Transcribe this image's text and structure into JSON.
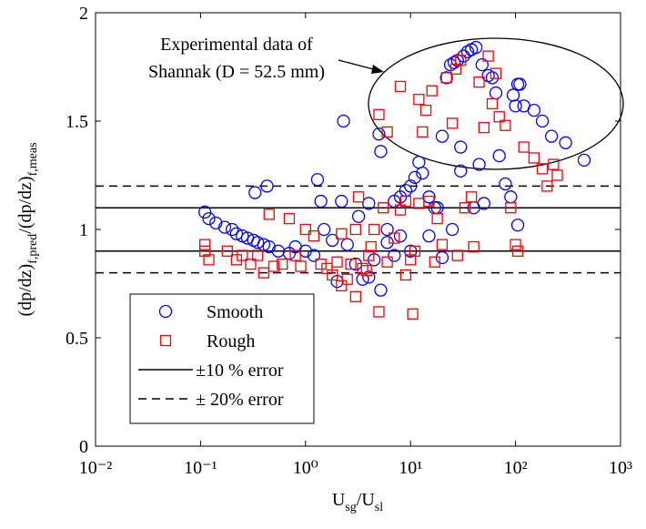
{
  "chart_data": {
    "type": "scatter",
    "xscale": "log",
    "xlabel_parts": [
      "U",
      "sg",
      "/U",
      "sl"
    ],
    "ylabel_parts": [
      "(dp/dz)",
      "f,pred",
      "/(dp/dz)",
      "f,meas"
    ],
    "xlim": [
      0.01,
      1000
    ],
    "xticks": [
      {
        "value": 0.01,
        "label": "10⁻²"
      },
      {
        "value": 0.1,
        "label": "10⁻¹"
      },
      {
        "value": 1,
        "label": "10⁰"
      },
      {
        "value": 10,
        "label": "10¹"
      },
      {
        "value": 100,
        "label": "10²"
      },
      {
        "value": 1000,
        "label": "10³"
      }
    ],
    "ylim": [
      0,
      2
    ],
    "yticks": [
      0,
      0.5,
      1,
      1.5,
      2
    ],
    "annotation": [
      "Experimental data of",
      "Shannak (D = 52.5 mm)"
    ],
    "series": [
      {
        "name": "Smooth",
        "color": "#0000ff",
        "marker": "circle",
        "x": [
          0.11,
          0.12,
          0.14,
          0.17,
          0.2,
          0.22,
          0.25,
          0.28,
          0.32,
          0.35,
          0.4,
          0.45,
          0.33,
          0.43,
          0.55,
          0.7,
          0.8,
          1.0,
          1.2,
          1.3,
          1.4,
          1.5,
          1.8,
          2.3,
          2.2,
          2.5,
          3,
          3.2,
          3.5,
          4,
          4.5,
          5,
          5.2,
          5.2,
          6,
          7,
          8,
          9,
          10,
          11,
          12,
          13,
          15,
          17,
          20,
          22,
          24,
          26,
          28,
          30,
          32,
          35,
          38,
          42,
          45,
          48,
          55,
          60,
          70,
          80,
          90,
          95,
          100,
          105,
          110,
          120,
          150,
          180,
          220,
          300,
          450,
          30,
          40,
          50,
          8,
          10,
          7,
          2,
          4,
          6,
          20,
          25,
          105,
          65,
          18,
          15
        ],
        "values": [
          1.08,
          1.05,
          1.03,
          1.01,
          1.0,
          0.98,
          0.97,
          0.96,
          0.95,
          0.94,
          0.93,
          0.92,
          1.17,
          1.2,
          0.9,
          0.89,
          0.92,
          0.9,
          0.88,
          1.23,
          1.13,
          1.0,
          0.95,
          1.5,
          1.13,
          0.93,
          0.84,
          1.06,
          0.77,
          1.12,
          0.86,
          1.44,
          1.36,
          0.72,
          1.0,
          1.13,
          1.15,
          1.18,
          1.2,
          1.24,
          1.31,
          1.26,
          1.15,
          1.1,
          1.43,
          1.7,
          1.76,
          1.77,
          1.78,
          1.38,
          1.8,
          1.82,
          1.83,
          1.84,
          1.3,
          1.76,
          1.71,
          1.7,
          1.34,
          1.21,
          1.15,
          1.62,
          1.57,
          1.67,
          1.67,
          1.57,
          1.55,
          1.5,
          1.43,
          1.4,
          1.32,
          1.27,
          1.1,
          1.12,
          0.97,
          0.9,
          0.88,
          0.76,
          0.78,
          0.94,
          0.87,
          1.0,
          1.02,
          1.63,
          1.1,
          0.97
        ]
      },
      {
        "name": "Rough",
        "color": "#ff0000",
        "marker": "square",
        "x": [
          0.11,
          0.11,
          0.12,
          0.18,
          0.22,
          0.25,
          0.3,
          0.35,
          0.4,
          0.45,
          0.5,
          0.6,
          0.7,
          0.8,
          0.9,
          1.0,
          1.2,
          1.4,
          1.6,
          1.8,
          2,
          2.2,
          2.5,
          2.7,
          3,
          3,
          3.2,
          3.5,
          3.8,
          4.2,
          4.5,
          5,
          5,
          5.5,
          6,
          7,
          8,
          9,
          10,
          10.5,
          11,
          12,
          12,
          13,
          14,
          15,
          16,
          17,
          18,
          20,
          22,
          25,
          27,
          28,
          30,
          33,
          38,
          40,
          45,
          50,
          55,
          60,
          65,
          70,
          80,
          90,
          100,
          105,
          120,
          150,
          180,
          200,
          230,
          250,
          8,
          6,
          9,
          4,
          2.2
        ],
        "values": [
          0.93,
          0.9,
          0.86,
          0.9,
          0.86,
          0.88,
          0.84,
          0.88,
          0.8,
          1.07,
          0.83,
          0.84,
          1.05,
          0.88,
          0.83,
          1.0,
          0.97,
          0.84,
          0.82,
          0.79,
          0.85,
          0.98,
          0.77,
          0.84,
          1.0,
          0.69,
          1.15,
          0.82,
          0.81,
          0.92,
          1.0,
          0.62,
          1.53,
          1.1,
          0.85,
          0.96,
          1.09,
          0.79,
          0.86,
          0.61,
          0.9,
          1.12,
          1.6,
          1.45,
          1.55,
          1.13,
          1.64,
          0.85,
          1.05,
          0.93,
          1.7,
          1.49,
          1.74,
          0.88,
          1.78,
          1.1,
          1.15,
          0.92,
          1.68,
          1.47,
          1.8,
          1.58,
          1.72,
          1.52,
          1.48,
          1.1,
          0.93,
          0.9,
          1.38,
          1.33,
          1.28,
          1.2,
          1.3,
          1.25,
          1.66,
          1.45,
          1.13,
          0.88,
          0.74
        ]
      }
    ],
    "reference_lines": [
      {
        "name": "±10 % error",
        "values": [
          0.9,
          1.1
        ],
        "dash": false
      },
      {
        "name": "± 20% error",
        "values": [
          0.8,
          1.2
        ],
        "dash": true
      }
    ]
  }
}
